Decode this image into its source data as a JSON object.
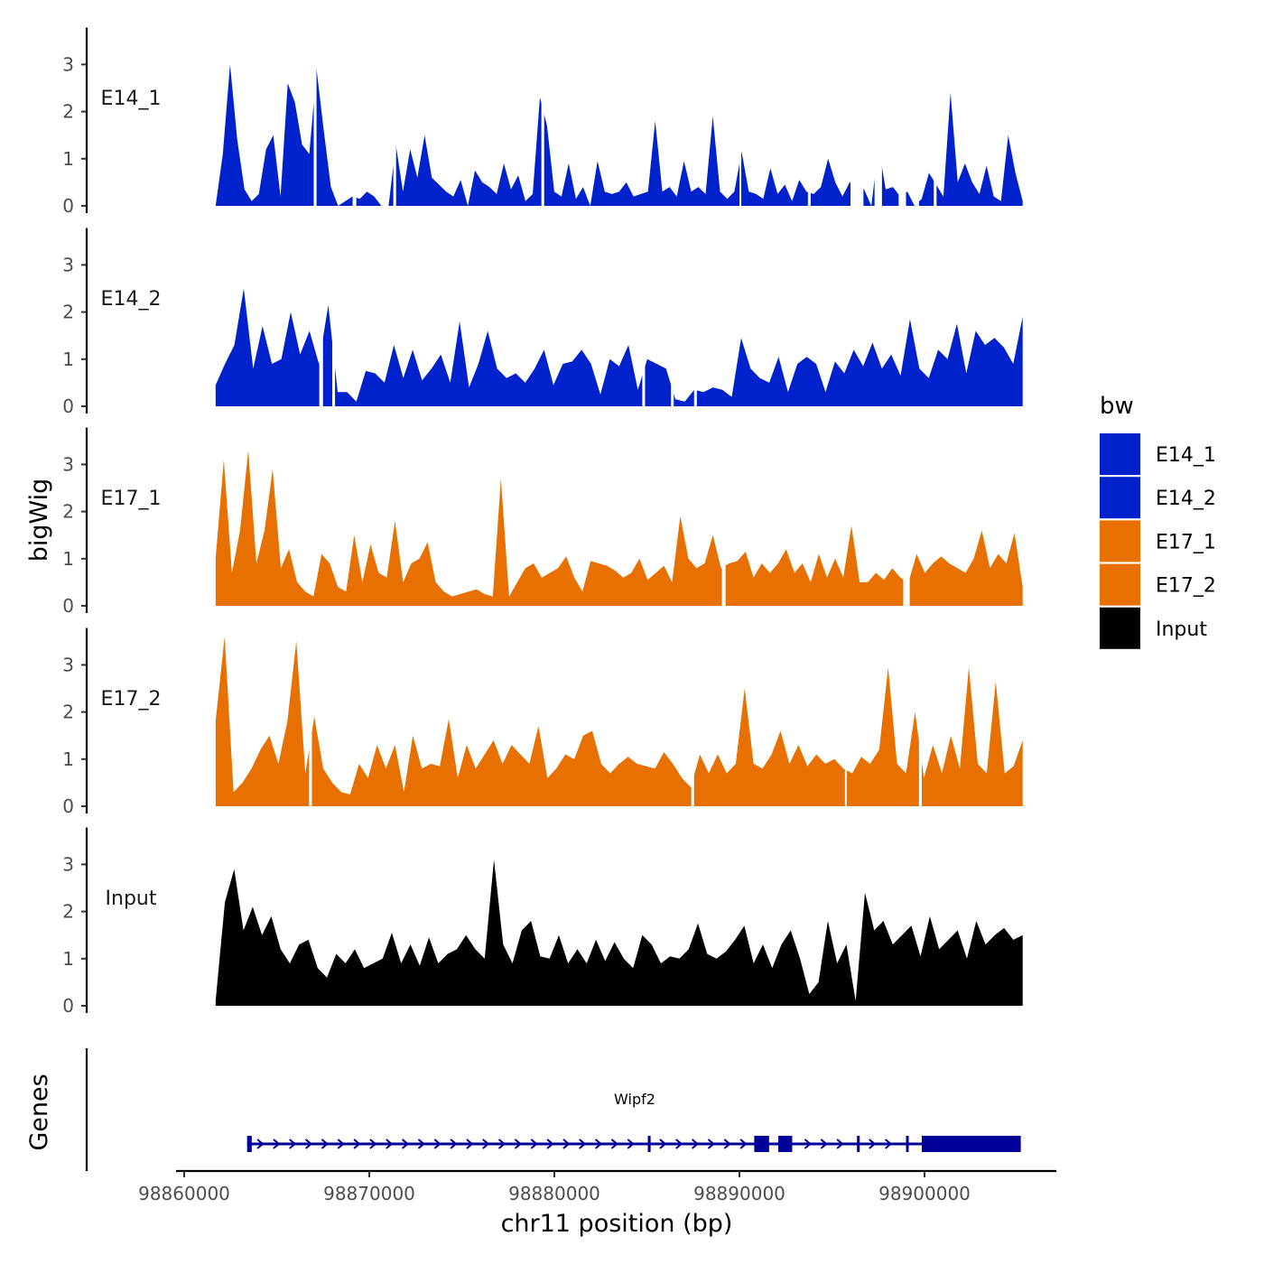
{
  "chart_data": {
    "type": "area",
    "region": {
      "chrom": "chr11",
      "start": 98861700,
      "end": 98905300
    },
    "xlabel": "chr11 position (bp)",
    "x_ticks": [
      98860000,
      98870000,
      98880000,
      98890000,
      98900000
    ],
    "x_tick_labels": [
      "98860000",
      "98870000",
      "98880000",
      "98890000",
      "98900000"
    ],
    "ylabel": "bigWig",
    "ylim": [
      0,
      3.8
    ],
    "y_ticks": [
      0,
      1,
      2,
      3
    ],
    "y_tick_labels": [
      "0",
      "1",
      "2",
      "3"
    ],
    "tracks": [
      {
        "name": "E14_1",
        "color": "#0022cc",
        "values": [
          0,
          1.1,
          3.0,
          1.4,
          0.35,
          0.1,
          0.25,
          1.2,
          1.5,
          0.2,
          2.6,
          2.2,
          1.3,
          1.1,
          2.9,
          1.6,
          0.4,
          0,
          0.1,
          0.2,
          0.15,
          0.3,
          0.2,
          0,
          0,
          1.3,
          0.3,
          1.2,
          0.6,
          1.5,
          0.6,
          0.45,
          0.3,
          0.2,
          0.55,
          0,
          0.75,
          0.5,
          0.4,
          0.25,
          0.9,
          0.35,
          0.65,
          0.1,
          0.25,
          2.3,
          1.7,
          0.3,
          0.2,
          0.9,
          0.15,
          0.4,
          0,
          0.95,
          0.3,
          0.25,
          0.3,
          0.5,
          0.2,
          0.25,
          0.3,
          1.8,
          0.3,
          0.4,
          0.2,
          0.95,
          0.3,
          0.4,
          0.25,
          1.9,
          0.3,
          0.15,
          0.3,
          1.15,
          0.3,
          0.25,
          0.15,
          0.8,
          0.25,
          0.45,
          0.1,
          0.55,
          0.3,
          0.25,
          0.4,
          1.0,
          0.5,
          0.2,
          0.5,
          0.4,
          0.35,
          0,
          1.25,
          0.35,
          0.4,
          0.2,
          0.3,
          0,
          0.15,
          0.7,
          0.45,
          0.2,
          2.4,
          0.5,
          0.9,
          0.5,
          0.25,
          0.85,
          0.2,
          0.1,
          1.5,
          0.7,
          0.1
        ],
        "gaps": [
          [
            98867000,
            98867150
          ],
          [
            98869100,
            98869300
          ],
          [
            98871300,
            98871450
          ],
          [
            98879300,
            98879450
          ],
          [
            98890000,
            98890100
          ],
          [
            98893700,
            98893850
          ],
          [
            98896000,
            98896700
          ],
          [
            98897300,
            98897700
          ],
          [
            98898600,
            98899000
          ],
          [
            98899500,
            98899700
          ],
          [
            98900500,
            98900650
          ],
          [
            98905300,
            98905300
          ]
        ]
      },
      {
        "name": "E14_2",
        "color": "#0022cc",
        "values": [
          0.45,
          0.9,
          1.3,
          2.5,
          0.8,
          1.7,
          0.9,
          1.0,
          2.0,
          1.1,
          1.6,
          0.9,
          2.15,
          0.3,
          0.3,
          0.1,
          0.75,
          0.7,
          0.5,
          1.3,
          0.6,
          1.2,
          0.55,
          0.8,
          1.1,
          0.5,
          1.8,
          0.4,
          0.9,
          1.6,
          0.8,
          0.6,
          0.7,
          0.5,
          0.8,
          1.2,
          0.45,
          0.9,
          0.95,
          1.2,
          0.9,
          0.25,
          1.0,
          0.85,
          1.3,
          0.35,
          1.0,
          0.9,
          0.8,
          0.15,
          0.1,
          0.35,
          0.3,
          0.4,
          0.35,
          0.2,
          1.45,
          0.8,
          0.6,
          0.5,
          1.05,
          0.3,
          0.9,
          1.05,
          0.9,
          0.3,
          0.95,
          0.7,
          1.2,
          0.85,
          1.35,
          0.8,
          1.1,
          0.65,
          1.85,
          0.8,
          0.6,
          1.2,
          1.0,
          1.75,
          0.7,
          1.6,
          1.3,
          1.45,
          1.25,
          0.9,
          1.9
        ],
        "gaps": [
          [
            98867300,
            98867500
          ],
          [
            98868000,
            98868150
          ],
          [
            98884750,
            98884900
          ],
          [
            98886300,
            98886450
          ],
          [
            98887550,
            98887700
          ]
        ]
      },
      {
        "name": "E17_1",
        "color": "#e87000",
        "values": [
          1.0,
          3.1,
          0.7,
          1.6,
          3.3,
          0.9,
          1.6,
          2.9,
          0.8,
          1.2,
          0.5,
          0.3,
          0.2,
          1.1,
          0.9,
          0.4,
          0.3,
          1.5,
          0.5,
          1.3,
          0.7,
          0.6,
          1.8,
          0.5,
          0.9,
          1.0,
          1.35,
          0.5,
          0.3,
          0.2,
          0.25,
          0.3,
          0.35,
          0.25,
          0.2,
          2.7,
          0.2,
          0.5,
          0.8,
          0.9,
          0.6,
          0.7,
          0.8,
          1.05,
          0.6,
          0.3,
          0.95,
          0.9,
          0.85,
          0.75,
          0.6,
          0.7,
          1.0,
          0.55,
          0.7,
          0.85,
          0.5,
          1.9,
          1.0,
          0.8,
          0.9,
          1.5,
          0.8,
          0.9,
          0.95,
          1.15,
          0.6,
          0.9,
          0.7,
          0.9,
          1.2,
          0.7,
          0.9,
          0.5,
          1.1,
          0.6,
          1.0,
          0.6,
          1.7,
          0.5,
          0.5,
          0.7,
          0.55,
          0.8,
          0.6,
          0.5,
          1.1,
          0.7,
          0.9,
          1.05,
          0.9,
          0.8,
          0.7,
          1.0,
          1.6,
          0.8,
          1.1,
          0.9,
          1.55,
          0.4
        ],
        "gaps": [
          [
            98889050,
            98889250
          ],
          [
            98898850,
            98899200
          ]
        ]
      },
      {
        "name": "E17_2",
        "color": "#e87000",
        "values": [
          1.8,
          3.6,
          0.3,
          0.5,
          0.8,
          1.2,
          1.5,
          0.9,
          1.8,
          3.5,
          0.7,
          1.9,
          0.8,
          0.5,
          0.3,
          0.25,
          0.9,
          0.6,
          1.3,
          0.8,
          1.3,
          0.3,
          1.5,
          0.8,
          0.9,
          0.85,
          1.85,
          0.6,
          1.3,
          0.8,
          1.1,
          1.4,
          0.9,
          1.3,
          1.1,
          0.9,
          1.7,
          0.6,
          0.8,
          1.1,
          1.0,
          1.5,
          1.6,
          0.9,
          0.7,
          0.9,
          1.05,
          0.9,
          0.85,
          0.8,
          1.15,
          0.9,
          0.6,
          0.4,
          1.1,
          0.7,
          1.1,
          0.7,
          0.9,
          2.5,
          0.9,
          0.8,
          1.1,
          1.6,
          0.9,
          1.3,
          0.85,
          1.1,
          0.9,
          1.0,
          0.8,
          0.7,
          1.05,
          0.9,
          1.2,
          2.95,
          0.9,
          0.7,
          2.0,
          0.6,
          1.3,
          0.7,
          1.5,
          0.8,
          2.95,
          0.9,
          0.7,
          2.65,
          0.7,
          0.85,
          1.4
        ],
        "gaps": [
          [
            98866750,
            98866900
          ],
          [
            98887400,
            98887550
          ],
          [
            98895700,
            98895800
          ],
          [
            98899700,
            98899850
          ]
        ]
      },
      {
        "name": "Input",
        "color": "#000000",
        "values": [
          0.1,
          2.2,
          2.9,
          1.6,
          2.1,
          1.5,
          1.9,
          1.2,
          0.9,
          1.3,
          1.4,
          0.8,
          0.6,
          1.1,
          0.9,
          1.2,
          0.8,
          0.9,
          1.0,
          1.55,
          0.9,
          1.3,
          0.85,
          1.45,
          0.9,
          1.1,
          1.2,
          1.5,
          1.2,
          1.0,
          3.1,
          1.3,
          0.9,
          1.6,
          1.8,
          1.05,
          1.0,
          1.5,
          0.9,
          1.2,
          0.9,
          1.4,
          0.95,
          1.35,
          1.0,
          0.8,
          1.5,
          1.3,
          0.9,
          1.05,
          1.0,
          1.2,
          1.75,
          1.1,
          1.0,
          1.15,
          1.4,
          1.7,
          0.9,
          1.3,
          0.8,
          1.3,
          1.6,
          1.0,
          0.25,
          0.5,
          1.8,
          0.9,
          1.3,
          0.1,
          2.4,
          1.6,
          1.8,
          1.3,
          1.5,
          1.7,
          1.05,
          1.9,
          1.2,
          1.4,
          1.6,
          1.0,
          1.8,
          1.3,
          1.5,
          1.65,
          1.4,
          1.5
        ]
      }
    ],
    "legend": {
      "title": "bw",
      "entries": [
        {
          "label": "E14_1",
          "color": "#0022cc"
        },
        {
          "label": "E14_2",
          "color": "#0022cc"
        },
        {
          "label": "E17_1",
          "color": "#e87000"
        },
        {
          "label": "E17_2",
          "color": "#e87000"
        },
        {
          "label": "Input",
          "color": "#000000"
        }
      ]
    },
    "genes_track": {
      "title": "Genes",
      "gene": {
        "name": "Wipf2",
        "start": 98863400,
        "end": 98905200,
        "strand": "+",
        "color": "#000099",
        "exons": [
          [
            98863400,
            98863650
          ],
          [
            98885050,
            98885200
          ],
          [
            98890800,
            98891600
          ],
          [
            98892100,
            98892850
          ],
          [
            98896350,
            98896500
          ],
          [
            98899000,
            98899100
          ],
          [
            98899850,
            98905200
          ]
        ]
      }
    }
  }
}
